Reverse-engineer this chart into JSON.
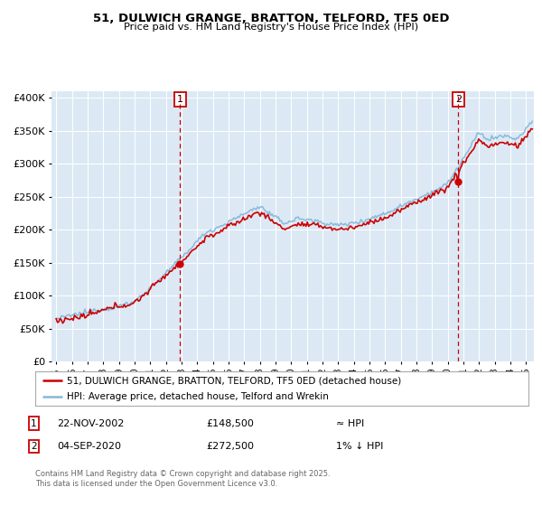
{
  "title": "51, DULWICH GRANGE, BRATTON, TELFORD, TF5 0ED",
  "subtitle": "Price paid vs. HM Land Registry's House Price Index (HPI)",
  "legend_line1": "51, DULWICH GRANGE, BRATTON, TELFORD, TF5 0ED (detached house)",
  "legend_line2": "HPI: Average price, detached house, Telford and Wrekin",
  "footnote": "Contains HM Land Registry data © Crown copyright and database right 2025.\nThis data is licensed under the Open Government Licence v3.0.",
  "table": [
    {
      "num": "1",
      "date": "22-NOV-2002",
      "price": "£148,500",
      "hpi": "≈ HPI"
    },
    {
      "num": "2",
      "date": "04-SEP-2020",
      "price": "£272,500",
      "hpi": "1% ↓ HPI"
    }
  ],
  "marker1_x": 2002.9,
  "marker1_y": 148500,
  "marker2_x": 2020.67,
  "marker2_y": 272500,
  "sale_line_color": "#cc0000",
  "hpi_line_color": "#85b8d8",
  "marker_box_color": "#cc0000",
  "vline_color": "#cc0000",
  "plot_bg_color": "#dce9f5",
  "grid_color": "#ffffff",
  "ylim": [
    0,
    410000
  ],
  "xlim": [
    1994.7,
    2025.5
  ],
  "ytick_step": 50000,
  "xticks": [
    1995,
    1996,
    1997,
    1998,
    1999,
    2000,
    2001,
    2002,
    2003,
    2004,
    2005,
    2006,
    2007,
    2008,
    2009,
    2010,
    2011,
    2012,
    2013,
    2014,
    2015,
    2016,
    2017,
    2018,
    2019,
    2020,
    2021,
    2022,
    2023,
    2024,
    2025
  ]
}
